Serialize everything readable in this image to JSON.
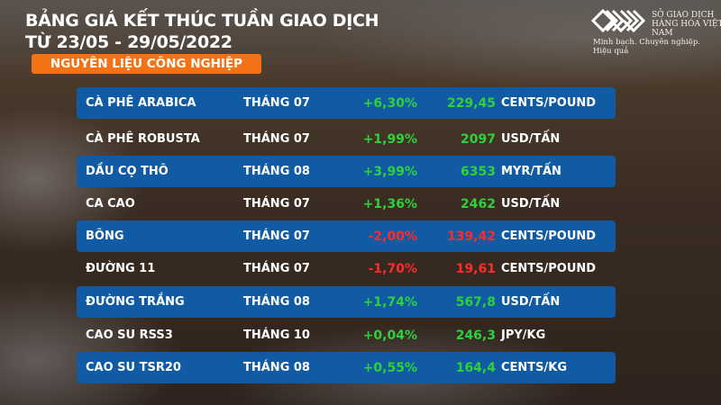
{
  "header": {
    "title_line1": "BẢNG GIÁ KẾT THÚC TUẦN GIAO DỊCH",
    "title_line2": "TỪ 23/05 - 29/05/2022",
    "category": "NGUYÊN LIỆU CÔNG NGHIỆP"
  },
  "logo": {
    "name": "SỞ GIAO DỊCH HÀNG HÓA VIỆT NAM",
    "slogan": "Minh bạch. Chuyên nghiệp. Hiệu quả"
  },
  "colors": {
    "up": "#2fd13a",
    "down": "#ff2a2a",
    "row_blue": "#105ba3",
    "badge": "#f47216"
  },
  "rows": [
    {
      "name": "CÀ PHÊ ARABICA",
      "month": "THÁNG 07",
      "change": "+6,30%",
      "price": "229,45",
      "unit": "CENTS/POUND",
      "dir": "up"
    },
    {
      "name": "CÀ PHÊ ROBUSTA",
      "month": "THÁNG 07",
      "change": "+1,99%",
      "price": "2097",
      "unit": "USD/TẤN",
      "dir": "up"
    },
    {
      "name": "DẦU CỌ THÔ",
      "month": "THÁNG 08",
      "change": "+3,99%",
      "price": "6353",
      "unit": "MYR/TẤN",
      "dir": "up"
    },
    {
      "name": "CA CAO",
      "month": "THÁNG 07",
      "change": "+1,36%",
      "price": "2462",
      "unit": "USD/TẤN",
      "dir": "up"
    },
    {
      "name": "BÔNG",
      "month": "THÁNG 07",
      "change": "-2,00%",
      "price": "139,42",
      "unit": "CENTS/POUND",
      "dir": "down"
    },
    {
      "name": "ĐƯỜNG 11",
      "month": "THÁNG 07",
      "change": "-1,70%",
      "price": "19,61",
      "unit": "CENTS/POUND",
      "dir": "down"
    },
    {
      "name": "ĐƯỜNG TRẮNG",
      "month": "THÁNG 08",
      "change": "+1,74%",
      "price": "567,8",
      "unit": "USD/TẤN",
      "dir": "up"
    },
    {
      "name": "CAO SU RSS3",
      "month": "THÁNG 10",
      "change": "+0,04%",
      "price": "246,3",
      "unit": "JPY/KG",
      "dir": "up"
    },
    {
      "name": "CAO SU TSR20",
      "month": "THÁNG 08",
      "change": "+0,55%",
      "price": "164,4",
      "unit": "CENTS/KG",
      "dir": "up"
    }
  ]
}
